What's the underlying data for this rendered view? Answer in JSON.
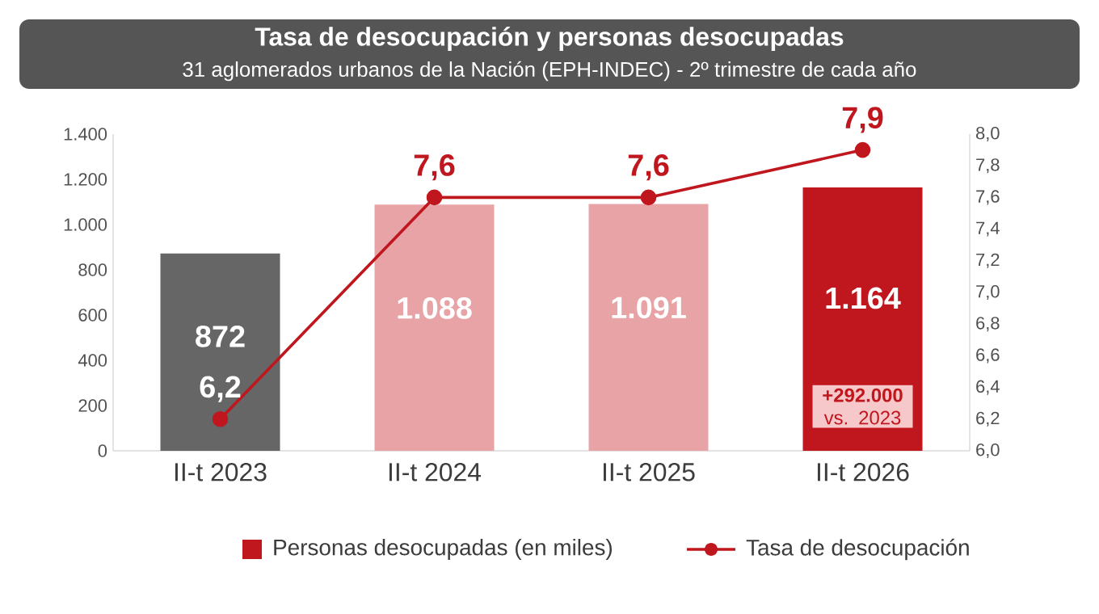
{
  "chart_data": {
    "type": "bar",
    "title": "Tasa de desocupación y personas desocupadas",
    "subtitle": "31 aglomerados urbanos de la Nación (EPH-INDEC) - 2º trimestre de cada año",
    "categories": [
      "II-t 2023",
      "II-t 2024",
      "II-t 2025",
      "II-t 2026"
    ],
    "series": [
      {
        "name": "Personas desocupadas (en miles)",
        "color": "#c0161e",
        "colors": [
          "#666666",
          "#e8a3a6",
          "#e8a3a6",
          "#c0161e"
        ],
        "values": [
          872,
          1088,
          1091,
          1164
        ],
        "value_labels": [
          "872",
          "1.088",
          "1.091",
          "1.164"
        ]
      },
      {
        "name": "Tasa de desocupación",
        "type": "line",
        "axis": "y2",
        "color": "#c0161e",
        "values": [
          6.2,
          7.6,
          7.6,
          7.9
        ],
        "value_labels": [
          "6,2",
          "7,6",
          "7,6",
          "7,9"
        ]
      }
    ],
    "ylim": [
      0,
      1400
    ],
    "yticks": [
      {
        "value": 0,
        "label": "0"
      },
      {
        "value": 200,
        "label": "200"
      },
      {
        "value": 400,
        "label": "400"
      },
      {
        "value": 600,
        "label": "600"
      },
      {
        "value": 800,
        "label": "800"
      },
      {
        "value": 1000,
        "label": "1.000"
      },
      {
        "value": 1200,
        "label": "1.200"
      },
      {
        "value": 1400,
        "label": "1.400"
      }
    ],
    "y2lim": [
      6,
      8
    ],
    "y2ticks": [
      {
        "value": 6.0,
        "label": "6,0"
      },
      {
        "value": 6.2,
        "label": "6,2"
      },
      {
        "value": 6.4,
        "label": "6,4"
      },
      {
        "value": 6.6,
        "label": "6,6"
      },
      {
        "value": 6.8,
        "label": "6,8"
      },
      {
        "value": 7.0,
        "label": "7,0"
      },
      {
        "value": 7.2,
        "label": "7,2"
      },
      {
        "value": 7.4,
        "label": "7,4"
      },
      {
        "value": 7.6,
        "label": "7,6"
      },
      {
        "value": 7.8,
        "label": "7,8"
      },
      {
        "value": 8.0,
        "label": "8,0"
      }
    ],
    "annotations": [
      "**+292.000** vs. 2023"
    ],
    "marker": "circle",
    "legend": "bottom"
  }
}
